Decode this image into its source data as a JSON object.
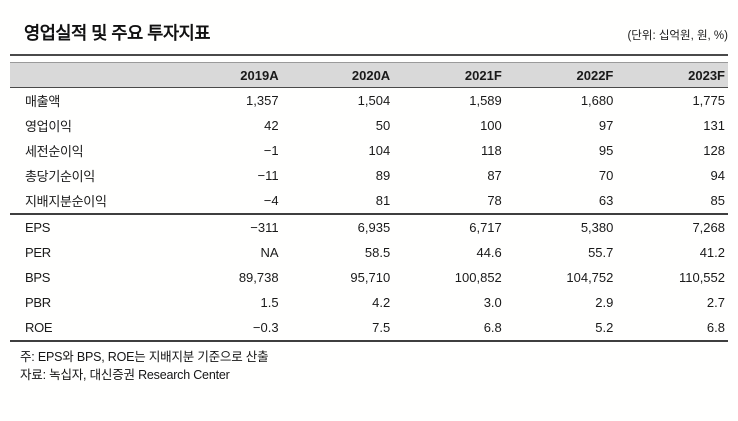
{
  "title": "영업실적 및 주요 투자지표",
  "unit_label": "(단위: 십억원, 원, %)",
  "colors": {
    "header_bg": "#d9d9d9",
    "rule_dark": "#3f3f3f",
    "rule_light": "#9a9a9a",
    "text": "#1a1a1a"
  },
  "table": {
    "columns": [
      "2019A",
      "2020A",
      "2021F",
      "2022F",
      "2023F"
    ],
    "rows": [
      {
        "label": "매출액",
        "values": [
          "1,357",
          "1,504",
          "1,589",
          "1,680",
          "1,775"
        ]
      },
      {
        "label": "영업이익",
        "values": [
          "42",
          "50",
          "100",
          "97",
          "131"
        ]
      },
      {
        "label": "세전순이익",
        "values": [
          "−1",
          "104",
          "118",
          "95",
          "128"
        ]
      },
      {
        "label": "총당기순이익",
        "values": [
          "−11",
          "89",
          "87",
          "70",
          "94"
        ]
      },
      {
        "label": "지배지분순이익",
        "values": [
          "−4",
          "81",
          "78",
          "63",
          "85"
        ]
      },
      {
        "label": "EPS",
        "values": [
          "−311",
          "6,935",
          "6,717",
          "5,380",
          "7,268"
        ]
      },
      {
        "label": "PER",
        "values": [
          "NA",
          "58.5",
          "44.6",
          "55.7",
          "41.2"
        ]
      },
      {
        "label": "BPS",
        "values": [
          "89,738",
          "95,710",
          "100,852",
          "104,752",
          "110,552"
        ]
      },
      {
        "label": "PBR",
        "values": [
          "1.5",
          "4.2",
          "3.0",
          "2.9",
          "2.7"
        ]
      },
      {
        "label": "ROE",
        "values": [
          "−0.3",
          "7.5",
          "6.8",
          "5.2",
          "6.8"
        ]
      }
    ]
  },
  "footnotes": {
    "note": "주: EPS와 BPS, ROE는 지배지분 기준으로 산출",
    "source": "자료: 녹십자, 대신증권 Research Center"
  }
}
